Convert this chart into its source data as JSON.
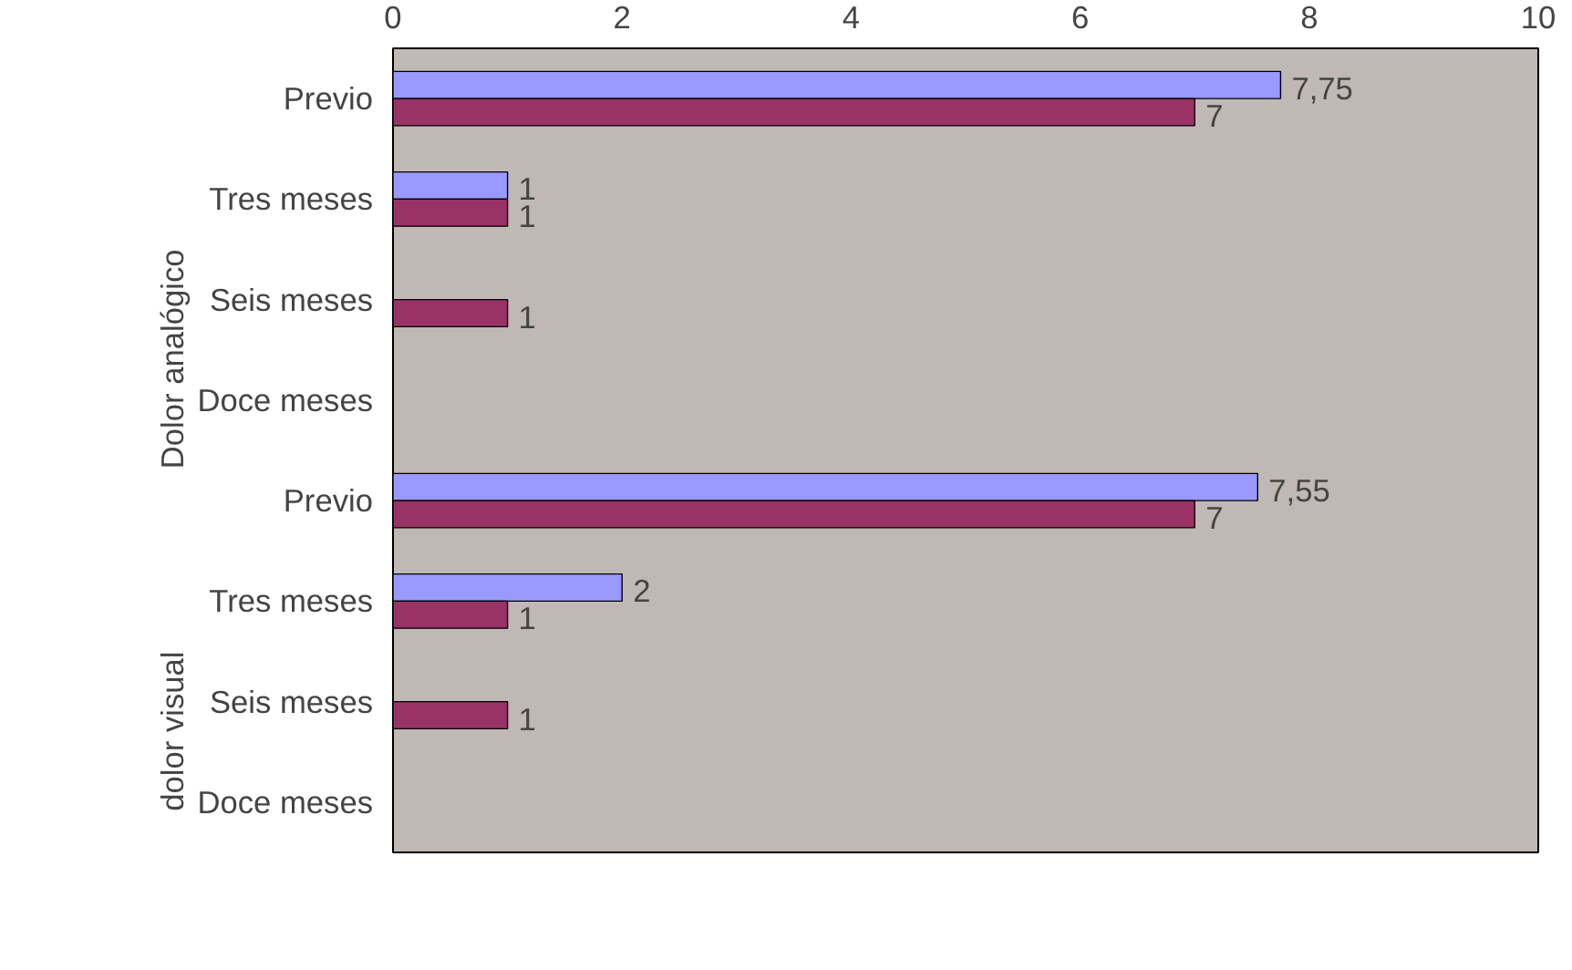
{
  "chart_data": {
    "type": "bar",
    "orientation": "horizontal",
    "categories": [
      "Previo",
      "Tres meses",
      "Seis meses",
      "Doce meses",
      "Previo",
      "Tres meses",
      "Seis meses",
      "Doce meses"
    ],
    "series": [
      {
        "color": "#9999ff",
        "values": [
          7.75,
          1,
          null,
          null,
          7.55,
          2,
          null,
          null
        ],
        "value_labels": [
          "7,75",
          "1",
          null,
          null,
          "7,55",
          "2",
          null,
          null
        ]
      },
      {
        "color": "#993366",
        "values": [
          7,
          1,
          1,
          null,
          7,
          1,
          1,
          null
        ],
        "value_labels": [
          "7",
          "1",
          "1",
          null,
          "7",
          "1",
          "1",
          null
        ]
      }
    ],
    "annotations": [
      "Dolor analógico",
      "dolor visual"
    ],
    "xlim": [
      0,
      10
    ],
    "xticks": [
      0,
      2,
      4,
      6,
      8,
      10
    ],
    "grid": false
  }
}
